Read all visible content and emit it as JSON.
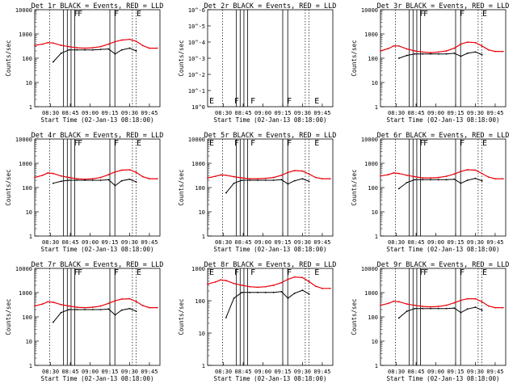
{
  "figure": {
    "xlabel": "Start Time (02-Jan-13 08:18:00)",
    "ylabel": "Counts/sec",
    "xticks": [
      "08:30",
      "08:45",
      "09:00",
      "09:15",
      "09:30",
      "09:45"
    ],
    "yticks_counts": [
      "1",
      "10",
      "100",
      "1000",
      "10000"
    ],
    "yticks_det2": [
      "10^0",
      "10^-1",
      "10^-2",
      "10^-3",
      "10^-4",
      "10^-5",
      "10^-6"
    ],
    "colors": {
      "events": "#000000",
      "lld": "#e8000b"
    }
  },
  "chart_data": [
    {
      "type": "line",
      "title": "Det 1r BLACK = Events, RED = LLD",
      "ylog": true,
      "ylim": [
        1,
        10000
      ],
      "x": [
        "08:18",
        "08:24",
        "08:28",
        "08:32",
        "08:38",
        "08:44",
        "08:50",
        "08:56",
        "09:02",
        "09:08",
        "09:14",
        "09:19",
        "09:24",
        "09:30",
        "09:35",
        "09:40",
        "09:45",
        "09:51"
      ],
      "series": [
        {
          "values": [
            340,
            380,
            440,
            420,
            340,
            300,
            270,
            260,
            270,
            300,
            380,
            480,
            560,
            600,
            500,
            330,
            260,
            260
          ]
        },
        {
          "values": [
            null,
            null,
            null,
            70,
            160,
            220,
            220,
            220,
            220,
            230,
            240,
            150,
            220,
            260,
            200,
            null,
            null,
            null
          ]
        }
      ],
      "markers": [
        "F",
        "F",
        "F",
        "E"
      ]
    },
    {
      "type": "line",
      "title": "Det 2r BLACK = Events, RED = LLD",
      "ylog": true,
      "ylim": [
        "10^0",
        "10^-6"
      ],
      "series": [],
      "markers": [
        "E",
        "F",
        "F",
        "F",
        "E"
      ]
    },
    {
      "type": "line",
      "title": "Det 3r BLACK = Events, RED = LLD",
      "ylog": true,
      "ylim": [
        1,
        10000
      ],
      "x": [
        "08:18",
        "08:24",
        "08:28",
        "08:32",
        "08:38",
        "08:44",
        "08:50",
        "08:56",
        "09:02",
        "09:08",
        "09:14",
        "09:19",
        "09:24",
        "09:30",
        "09:35",
        "09:40",
        "09:45",
        "09:51"
      ],
      "series": [
        {
          "values": [
            200,
            250,
            320,
            320,
            240,
            200,
            180,
            170,
            180,
            200,
            260,
            380,
            460,
            440,
            320,
            220,
            190,
            190
          ]
        },
        {
          "values": [
            null,
            null,
            null,
            100,
            130,
            150,
            150,
            150,
            150,
            150,
            160,
            120,
            160,
            180,
            140,
            null,
            null,
            null
          ]
        }
      ],
      "markers": [
        "F",
        "F",
        "F",
        "E"
      ]
    },
    {
      "type": "line",
      "title": "Det 4r BLACK = Events, RED = LLD",
      "ylog": true,
      "ylim": [
        1,
        10000
      ],
      "x": [
        "08:18",
        "08:24",
        "08:28",
        "08:32",
        "08:38",
        "08:44",
        "08:50",
        "08:56",
        "09:02",
        "09:08",
        "09:14",
        "09:19",
        "09:24",
        "09:30",
        "09:35",
        "09:40",
        "09:45",
        "09:51"
      ],
      "series": [
        {
          "values": [
            260,
            320,
            400,
            380,
            300,
            260,
            230,
            220,
            230,
            260,
            340,
            440,
            520,
            540,
            420,
            280,
            230,
            230
          ]
        },
        {
          "values": [
            null,
            null,
            null,
            150,
            180,
            200,
            200,
            200,
            200,
            200,
            210,
            120,
            190,
            220,
            170,
            null,
            null,
            null
          ]
        }
      ],
      "markers": [
        "F",
        "F",
        "F",
        "E"
      ]
    },
    {
      "type": "line",
      "title": "Det 5r BLACK = Events, RED = LLD",
      "ylog": true,
      "ylim": [
        1,
        10000
      ],
      "x": [
        "08:18",
        "08:24",
        "08:28",
        "08:32",
        "08:38",
        "08:44",
        "08:50",
        "08:56",
        "09:02",
        "09:08",
        "09:14",
        "09:19",
        "09:24",
        "09:30",
        "09:35",
        "09:40",
        "09:45",
        "09:51"
      ],
      "series": [
        {
          "values": [
            250,
            290,
            330,
            320,
            280,
            250,
            230,
            230,
            240,
            260,
            320,
            420,
            500,
            480,
            360,
            260,
            230,
            230
          ]
        },
        {
          "values": [
            null,
            null,
            null,
            60,
            150,
            200,
            200,
            200,
            200,
            200,
            210,
            140,
            190,
            230,
            180,
            null,
            null,
            null
          ]
        }
      ],
      "markers": [
        "E",
        "F",
        "F",
        "F",
        "E"
      ]
    },
    {
      "type": "line",
      "title": "Det 6r BLACK = Events, RED = LLD",
      "ylog": true,
      "ylim": [
        1,
        10000
      ],
      "x": [
        "08:18",
        "08:24",
        "08:28",
        "08:32",
        "08:38",
        "08:44",
        "08:50",
        "08:56",
        "09:02",
        "09:08",
        "09:14",
        "09:19",
        "09:24",
        "09:30",
        "09:35",
        "09:40",
        "09:45",
        "09:51"
      ],
      "series": [
        {
          "values": [
            300,
            340,
            400,
            380,
            320,
            280,
            250,
            250,
            260,
            290,
            360,
            460,
            540,
            520,
            380,
            270,
            230,
            230
          ]
        },
        {
          "values": [
            null,
            null,
            null,
            90,
            160,
            210,
            210,
            210,
            210,
            210,
            220,
            150,
            200,
            240,
            190,
            null,
            null,
            null
          ]
        }
      ],
      "markers": [
        "F",
        "F",
        "F",
        "E"
      ]
    },
    {
      "type": "line",
      "title": "Det 7r BLACK = Events, RED = LLD",
      "ylog": true,
      "ylim": [
        1,
        10000
      ],
      "x": [
        "08:18",
        "08:24",
        "08:28",
        "08:32",
        "08:38",
        "08:44",
        "08:50",
        "08:56",
        "09:02",
        "09:08",
        "09:14",
        "09:19",
        "09:24",
        "09:30",
        "09:35",
        "09:40",
        "09:45",
        "09:51"
      ],
      "series": [
        {
          "values": [
            280,
            340,
            420,
            400,
            320,
            280,
            250,
            240,
            250,
            280,
            360,
            460,
            540,
            560,
            430,
            290,
            240,
            240
          ]
        },
        {
          "values": [
            null,
            null,
            null,
            60,
            150,
            200,
            200,
            200,
            200,
            200,
            210,
            120,
            190,
            220,
            170,
            null,
            null,
            null
          ]
        }
      ],
      "markers": [
        "F",
        "F",
        "F",
        "E"
      ]
    },
    {
      "type": "line",
      "title": "Det 8r BLACK = Events, RED = LLD",
      "ylog": true,
      "ylim": [
        1,
        1000
      ],
      "x": [
        "08:18",
        "08:24",
        "08:28",
        "08:32",
        "08:38",
        "08:44",
        "08:50",
        "08:56",
        "09:02",
        "09:08",
        "09:14",
        "09:19",
        "09:24",
        "09:30",
        "09:35",
        "09:40",
        "09:45",
        "09:51"
      ],
      "series": [
        {
          "values": [
            330,
            380,
            440,
            420,
            340,
            300,
            270,
            260,
            270,
            300,
            360,
            460,
            540,
            520,
            390,
            280,
            240,
            240
          ]
        },
        {
          "values": [
            null,
            null,
            null,
            30,
            120,
            180,
            180,
            180,
            180,
            180,
            190,
            120,
            170,
            210,
            160,
            null,
            null,
            null
          ]
        }
      ],
      "markers": [
        "E",
        "F",
        "F",
        "F",
        "E"
      ]
    },
    {
      "type": "line",
      "title": "Det 9r BLACK = Events, RED = LLD",
      "ylog": true,
      "ylim": [
        1,
        10000
      ],
      "x": [
        "08:18",
        "08:24",
        "08:28",
        "08:32",
        "08:38",
        "08:44",
        "08:50",
        "08:56",
        "09:02",
        "09:08",
        "09:14",
        "09:19",
        "09:24",
        "09:30",
        "09:35",
        "09:40",
        "09:45",
        "09:51"
      ],
      "series": [
        {
          "values": [
            300,
            360,
            440,
            420,
            340,
            300,
            270,
            260,
            270,
            300,
            380,
            480,
            560,
            560,
            420,
            280,
            240,
            240
          ]
        },
        {
          "values": [
            null,
            null,
            null,
            90,
            170,
            220,
            220,
            220,
            220,
            220,
            230,
            150,
            210,
            250,
            190,
            null,
            null,
            null
          ]
        }
      ],
      "markers": [
        "F",
        "F",
        "F",
        "E"
      ]
    }
  ]
}
